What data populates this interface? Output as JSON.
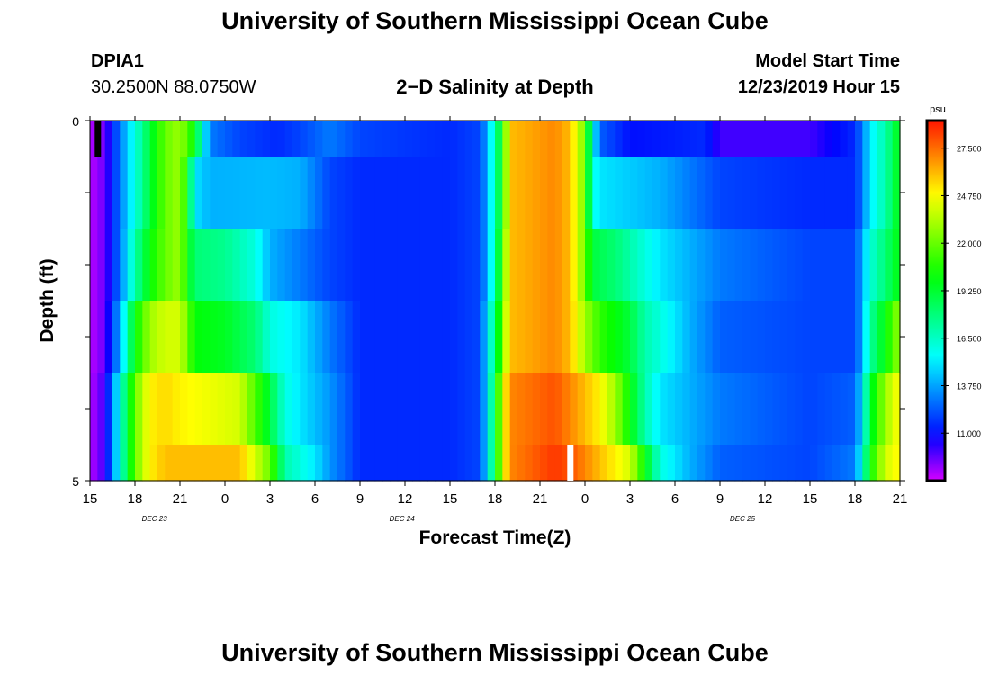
{
  "page_title": "University of Southern Mississippi Ocean Cube",
  "footer_title": "University of Southern Mississippi Ocean Cube",
  "station": {
    "id": "DPIA1",
    "coords": "30.2500N 88.0750W"
  },
  "model_start": {
    "label": "Model Start Time",
    "value": "12/23/2019 Hour 15"
  },
  "chart_data": {
    "type": "heatmap",
    "title": "2−D Salinity at Depth",
    "xlabel": "Forecast Time(Z)",
    "ylabel": "Depth (ft)",
    "x_tick_labels": [
      "15",
      "18",
      "21",
      "0",
      "3",
      "6",
      "9",
      "12",
      "15",
      "18",
      "21",
      "0",
      "3",
      "6",
      "9",
      "12",
      "15",
      "18",
      "21"
    ],
    "date_labels": [
      {
        "text": "DEC 23",
        "hour": 4.3
      },
      {
        "text": "DEC 24",
        "hour": 20.8
      },
      {
        "text": "DEC 25",
        "hour": 43.5
      }
    ],
    "x_range_hours": [
      0,
      54
    ],
    "y_ticks": [
      "0",
      "5"
    ],
    "y_range_ft": [
      0,
      5
    ],
    "depth_layers_ft": [
      0,
      0.5,
      1.5,
      2.5,
      3.5,
      4.5
    ],
    "colorbar": {
      "unit": "psu",
      "min": 8.25,
      "max": 29.1,
      "tick_labels": [
        "27.500",
        "24.750",
        "22.000",
        "19.250",
        "16.500",
        "13.750",
        "11.000"
      ]
    },
    "markers": [
      {
        "color": "#000000",
        "hour": 0.5,
        "depth_from": 0,
        "depth_to": 0.5
      },
      {
        "color": "#ffffff",
        "hour": 32,
        "depth_from": 4.5,
        "depth_to": 5
      }
    ],
    "series": [
      {
        "name": "layer 0-0.5 ft",
        "knots": [
          [
            0,
            8.6
          ],
          [
            1,
            9.5
          ],
          [
            2,
            13
          ],
          [
            3,
            16
          ],
          [
            4,
            19
          ],
          [
            5,
            22
          ],
          [
            6,
            23
          ],
          [
            7,
            20
          ],
          [
            7.5,
            16
          ],
          [
            8,
            13
          ],
          [
            10,
            12
          ],
          [
            12.5,
            11.5
          ],
          [
            14,
            12
          ],
          [
            16,
            13
          ],
          [
            18,
            12
          ],
          [
            24,
            11.5
          ],
          [
            26,
            12
          ],
          [
            26.5,
            14
          ],
          [
            27,
            17
          ],
          [
            27.5,
            20
          ],
          [
            28,
            26
          ],
          [
            31,
            27
          ],
          [
            32,
            26
          ],
          [
            33,
            22
          ],
          [
            33.5,
            16
          ],
          [
            34,
            12.5
          ],
          [
            36,
            11
          ],
          [
            41,
            11.5
          ],
          [
            42,
            10
          ],
          [
            48,
            10
          ],
          [
            51,
            11.5
          ],
          [
            51.5,
            13
          ],
          [
            52,
            15
          ],
          [
            53,
            17
          ],
          [
            54,
            20
          ]
        ]
      },
      {
        "name": "layer 0.5-1.5 ft",
        "knots": [
          [
            0,
            8.6
          ],
          [
            1,
            9.5
          ],
          [
            2,
            13
          ],
          [
            3,
            16
          ],
          [
            4,
            19
          ],
          [
            5,
            22
          ],
          [
            6,
            23
          ],
          [
            6.5,
            20
          ],
          [
            7,
            15
          ],
          [
            8,
            14
          ],
          [
            12,
            14.2
          ],
          [
            14,
            14
          ],
          [
            15,
            13
          ],
          [
            16,
            12
          ],
          [
            18,
            11.5
          ],
          [
            24,
            11.5
          ],
          [
            26,
            12
          ],
          [
            26.5,
            14
          ],
          [
            27,
            17
          ],
          [
            27.5,
            20
          ],
          [
            28,
            26
          ],
          [
            31,
            27
          ],
          [
            32,
            26
          ],
          [
            33,
            22
          ],
          [
            33.5,
            16
          ],
          [
            34,
            15
          ],
          [
            36,
            14.5
          ],
          [
            38,
            14
          ],
          [
            40,
            13
          ],
          [
            42,
            12
          ],
          [
            48,
            11.5
          ],
          [
            51,
            11.5
          ],
          [
            51.5,
            13
          ],
          [
            52,
            15
          ],
          [
            53,
            17
          ],
          [
            54,
            20
          ]
        ]
      },
      {
        "name": "layer 1.5-2.5 ft",
        "knots": [
          [
            0,
            8.6
          ],
          [
            1,
            9.5
          ],
          [
            2,
            13
          ],
          [
            3,
            17
          ],
          [
            4,
            20
          ],
          [
            5,
            22
          ],
          [
            6,
            23
          ],
          [
            6.5,
            20
          ],
          [
            7,
            18
          ],
          [
            9,
            17.5
          ],
          [
            11,
            16
          ],
          [
            12,
            14
          ],
          [
            14,
            13
          ],
          [
            16,
            12
          ],
          [
            18,
            11.5
          ],
          [
            24,
            11.5
          ],
          [
            26,
            12
          ],
          [
            26.5,
            14
          ],
          [
            27,
            17
          ],
          [
            27.5,
            21
          ],
          [
            28,
            26
          ],
          [
            31,
            27
          ],
          [
            32,
            26
          ],
          [
            33,
            22
          ],
          [
            33.5,
            19
          ],
          [
            35,
            18
          ],
          [
            36,
            17
          ],
          [
            37,
            16
          ],
          [
            38,
            15
          ],
          [
            40,
            14
          ],
          [
            42,
            13
          ],
          [
            48,
            12
          ],
          [
            51,
            12
          ],
          [
            51.5,
            14
          ],
          [
            52,
            16
          ],
          [
            53,
            18
          ],
          [
            54,
            20
          ]
        ]
      },
      {
        "name": "layer 2.5-3.5 ft",
        "knots": [
          [
            0,
            8.6
          ],
          [
            1,
            9.5
          ],
          [
            2,
            14
          ],
          [
            3,
            20
          ],
          [
            4,
            23
          ],
          [
            5,
            24
          ],
          [
            6,
            24
          ],
          [
            6.5,
            22
          ],
          [
            7,
            20
          ],
          [
            9,
            19.5
          ],
          [
            11,
            18
          ],
          [
            12,
            16
          ],
          [
            14,
            15
          ],
          [
            16,
            13
          ],
          [
            18,
            11.5
          ],
          [
            24,
            11.5
          ],
          [
            26,
            12
          ],
          [
            26.5,
            15
          ],
          [
            27,
            18
          ],
          [
            27.5,
            22
          ],
          [
            28,
            26
          ],
          [
            31,
            27
          ],
          [
            32,
            26
          ],
          [
            33,
            23
          ],
          [
            34,
            21
          ],
          [
            35,
            20
          ],
          [
            36,
            19
          ],
          [
            37,
            17
          ],
          [
            38,
            16
          ],
          [
            40,
            14
          ],
          [
            42,
            12.5
          ],
          [
            48,
            12
          ],
          [
            51,
            12
          ],
          [
            51.5,
            14
          ],
          [
            52,
            17
          ],
          [
            53,
            20
          ],
          [
            54,
            23
          ]
        ]
      },
      {
        "name": "layer 3.5-4.5 ft",
        "knots": [
          [
            0,
            8.6
          ],
          [
            1,
            10
          ],
          [
            2,
            16
          ],
          [
            3,
            22
          ],
          [
            4,
            25
          ],
          [
            5,
            25.5
          ],
          [
            6,
            25
          ],
          [
            10,
            24
          ],
          [
            12,
            19
          ],
          [
            13,
            16
          ],
          [
            14,
            15
          ],
          [
            16,
            13.5
          ],
          [
            18,
            11.5
          ],
          [
            24,
            11.5
          ],
          [
            26,
            12
          ],
          [
            26.5,
            15
          ],
          [
            27,
            19
          ],
          [
            27.5,
            24
          ],
          [
            28,
            27
          ],
          [
            31,
            28
          ],
          [
            32,
            27
          ],
          [
            34,
            25
          ],
          [
            35,
            23
          ],
          [
            36,
            20
          ],
          [
            37,
            17
          ],
          [
            38,
            15
          ],
          [
            40,
            14
          ],
          [
            42,
            13
          ],
          [
            48,
            12
          ],
          [
            51,
            12.5
          ],
          [
            51.5,
            15
          ],
          [
            52,
            19
          ],
          [
            53,
            23
          ],
          [
            54,
            25
          ]
        ]
      },
      {
        "name": "layer 4.5-5 ft",
        "knots": [
          [
            0,
            8.6
          ],
          [
            1,
            10
          ],
          [
            2,
            16
          ],
          [
            3,
            22
          ],
          [
            4,
            25
          ],
          [
            5,
            26
          ],
          [
            6,
            26
          ],
          [
            10,
            26
          ],
          [
            12,
            22
          ],
          [
            13,
            17
          ],
          [
            15,
            15
          ],
          [
            16,
            13.5
          ],
          [
            18,
            11.5
          ],
          [
            24,
            11.5
          ],
          [
            26,
            12
          ],
          [
            26.5,
            15
          ],
          [
            27,
            19
          ],
          [
            27.5,
            24
          ],
          [
            28,
            27
          ],
          [
            31,
            28.5
          ],
          [
            32,
            28
          ],
          [
            34,
            26
          ],
          [
            36,
            24
          ],
          [
            37,
            20
          ],
          [
            38,
            16
          ],
          [
            40,
            14
          ],
          [
            42,
            12.5
          ],
          [
            48,
            12
          ],
          [
            51,
            13
          ],
          [
            51.5,
            16
          ],
          [
            52,
            20
          ],
          [
            53,
            24
          ],
          [
            54,
            25
          ]
        ]
      }
    ]
  }
}
